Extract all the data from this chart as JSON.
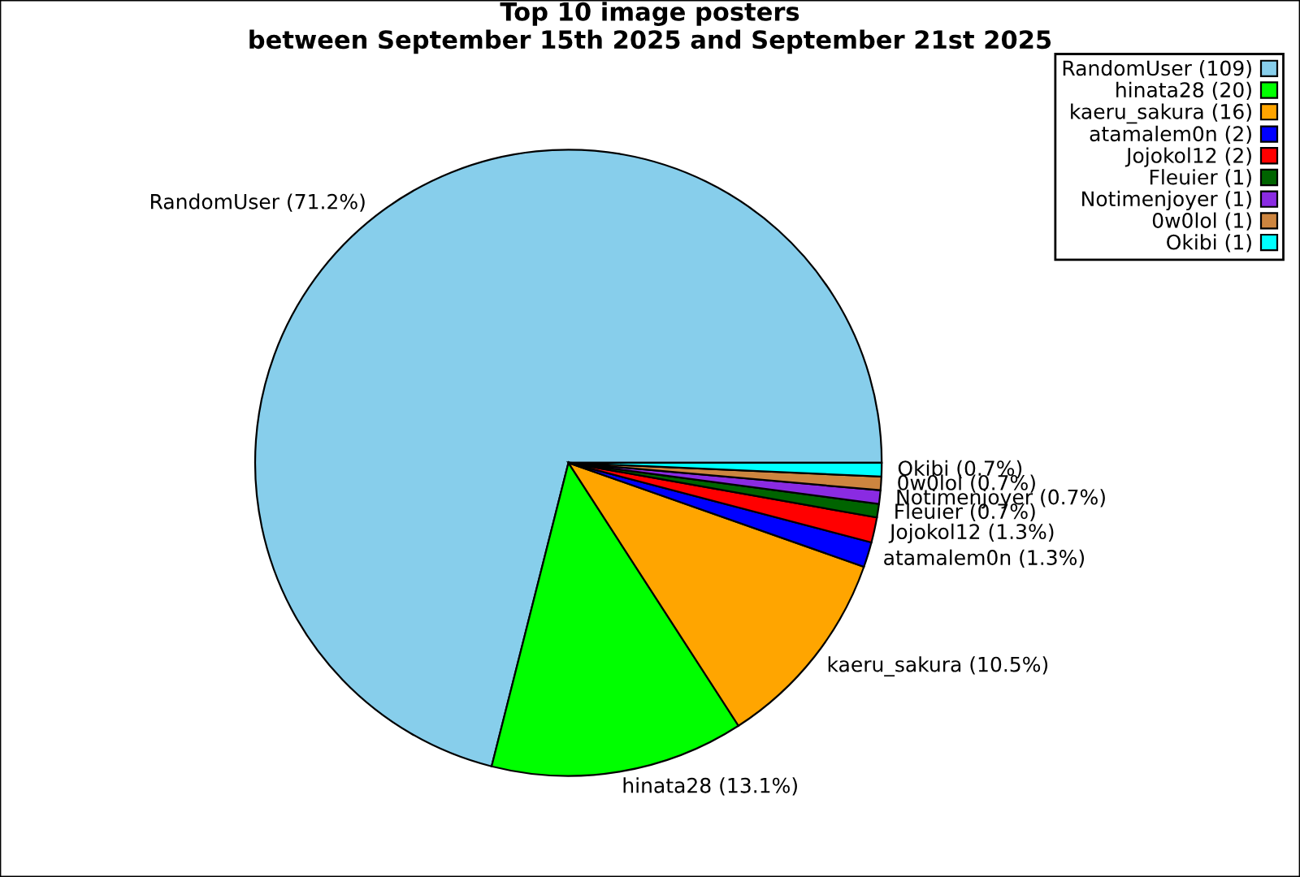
{
  "chart_data": {
    "type": "pie",
    "title": "Top 10 image posters\nbetween September 15th 2025 and September 21st 2025",
    "categories": [
      "RandomUser (109)",
      "hinata28 (20)",
      "kaeru_sakura (16)",
      "atamalem0n (2)",
      "Jojokol12 (2)",
      "Fleuier (1)",
      "Notimenjoyer (1)",
      "0w0lol (1)",
      "Okibi (1)"
    ],
    "values": [
      71.2,
      13.1,
      10.5,
      1.3,
      1.3,
      0.7,
      0.7,
      0.7,
      0.7
    ],
    "colors": [
      "#87ceeb",
      "#00ff00",
      "#ffa500",
      "#0000ff",
      "#ff0000",
      "#006400",
      "#8a2be2",
      "#cd853f",
      "#00ffff"
    ],
    "value_labels": [
      "RandomUser (71.2%)",
      "hinata28 (13.1%)",
      "kaeru_sakura (10.5%)",
      "atamalem0n (1.3%)",
      "Jojokol12 (1.3%)",
      "Fleuier (0.7%)",
      "Notimenjoyer (0.7%)",
      "0w0lol (0.7%)",
      "Okibi (0.7%)"
    ],
    "legend": "top right"
  }
}
